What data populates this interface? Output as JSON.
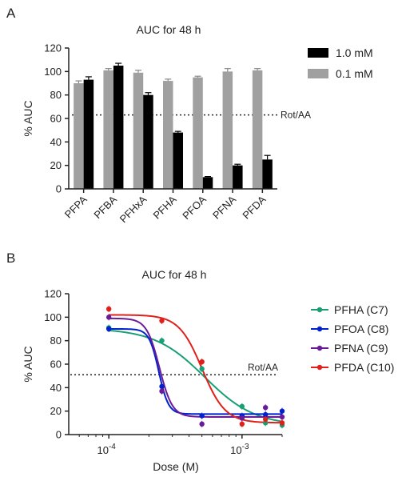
{
  "chart_data": [
    {
      "type": "bar",
      "panel": "A",
      "title": "AUC for 48 h",
      "ylabel": "% AUC",
      "xlabel": "",
      "ylim": [
        0,
        120
      ],
      "yticks": [
        0,
        20,
        40,
        60,
        80,
        100,
        120
      ],
      "categories": [
        "PFPA",
        "PFBA",
        "PFHxA",
        "PFHA",
        "PFOA",
        "PFNA",
        "PFDA"
      ],
      "series": [
        {
          "name": "0.1 mM",
          "color": "#a0a0a0",
          "values": [
            90,
            101,
            99,
            92,
            95,
            100,
            101
          ],
          "errors": [
            2,
            1.5,
            2,
            1.5,
            1,
            2.5,
            1.5
          ]
        },
        {
          "name": "1.0 mM",
          "color": "#000000",
          "values": [
            93,
            105,
            80,
            48,
            10,
            20,
            25
          ],
          "errors": [
            2.5,
            2,
            2,
            1,
            0.5,
            1,
            3.5
          ]
        }
      ],
      "legend_order": [
        "1.0 mM",
        "0.1 mM"
      ],
      "legend_position": "right",
      "reference_line": {
        "label": "Rot/AA",
        "y": 63
      }
    },
    {
      "type": "scatter",
      "panel": "B",
      "title": "AUC for 48 h",
      "ylabel": "% AUC",
      "xlabel": "Dose (M)",
      "x_scale": "log",
      "xlim": [
        5e-05,
        0.002
      ],
      "x_ticks": [
        {
          "value": 0.0001,
          "base": "10",
          "exp": "-4"
        },
        {
          "value": 0.001,
          "base": "10",
          "exp": "-3"
        }
      ],
      "ylim": [
        0,
        120
      ],
      "yticks": [
        0,
        20,
        40,
        60,
        80,
        100,
        120
      ],
      "series": [
        {
          "name": "PFHA (C7)",
          "color": "#1a9e76",
          "x": [
            0.0001,
            0.00025,
            0.0005,
            0.001,
            0.0015,
            0.002
          ],
          "y": [
            91,
            80,
            56,
            24,
            10,
            8
          ],
          "fit": {
            "top": 90.5,
            "bottom": 7.5,
            "logEC50": -3.28,
            "hill": 2.3
          }
        },
        {
          "name": "PFOA (C8)",
          "color": "#0022cc",
          "x": [
            0.0001,
            0.00025,
            0.0005,
            0.001,
            0.0015,
            0.002
          ],
          "y": [
            90,
            41,
            16,
            16,
            17,
            20
          ],
          "fit": {
            "top": 90,
            "bottom": 17.5,
            "logEC50": -3.625,
            "hill": 12
          }
        },
        {
          "name": "PFNA (C9)",
          "color": "#6a1b9a",
          "x": [
            0.0001,
            0.00025,
            0.0005,
            0.001,
            0.0015,
            0.002
          ],
          "y": [
            100,
            37,
            9,
            14,
            23,
            15
          ],
          "fit": {
            "top": 99,
            "bottom": 15,
            "logEC50": -3.62,
            "hill": 9
          }
        },
        {
          "name": "PFDA (C10)",
          "color": "#e0201b",
          "x": [
            0.0001,
            0.00025,
            0.0005,
            0.001,
            0.0015,
            0.002
          ],
          "y": [
            107,
            97,
            62,
            9,
            13,
            10
          ],
          "fit": {
            "top": 102,
            "bottom": 10,
            "logEC50": -3.3,
            "hill": 5
          }
        }
      ],
      "legend_position": "right",
      "reference_line": {
        "label": "Rot/AA",
        "y": 51
      }
    }
  ]
}
